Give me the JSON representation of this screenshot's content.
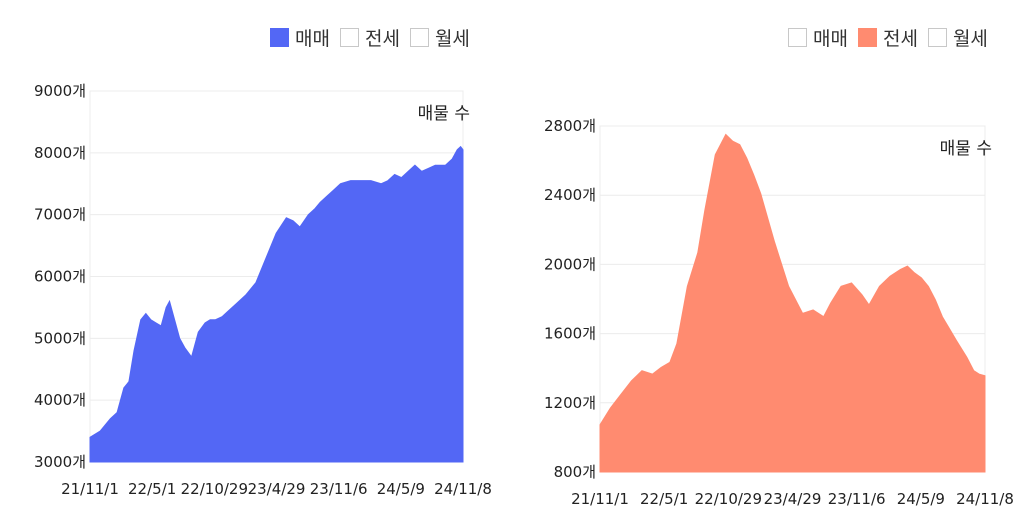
{
  "legend_labels": [
    "매매",
    "전세",
    "월세"
  ],
  "chart_note": "매물 수",
  "colors": {
    "sale": "#5367f5",
    "jeonse": "#ff8b70",
    "inactive_border": "#c8c8c8",
    "grid": "#ececec"
  },
  "chart_data": [
    {
      "type": "area",
      "active_series": "매매",
      "note": "매물 수",
      "legend": [
        "매매",
        "전세",
        "월세"
      ],
      "x_ticks": [
        "21/11/1",
        "22/5/1",
        "22/10/29",
        "23/4/29",
        "23/11/6",
        "24/5/9",
        "24/11/8"
      ],
      "y_ticks": [
        "3000개",
        "4000개",
        "5000개",
        "6000개",
        "7000개",
        "8000개",
        "9000개"
      ],
      "ylim": [
        3000,
        9000
      ],
      "xlim": [
        0,
        1102
      ],
      "grid": true,
      "legend_position": "top-right",
      "series": [
        {
          "name": "매매",
          "x": [
            0,
            30,
            60,
            80,
            100,
            115,
            130,
            150,
            165,
            180,
            195,
            210,
            225,
            235,
            250,
            265,
            280,
            300,
            320,
            340,
            355,
            370,
            390,
            410,
            430,
            460,
            490,
            520,
            550,
            580,
            600,
            620,
            645,
            665,
            680,
            700,
            720,
            740,
            770,
            800,
            830,
            860,
            880,
            900,
            920,
            940,
            960,
            980,
            1000,
            1020,
            1050,
            1070,
            1085,
            1095,
            1102
          ],
          "values": [
            3400,
            3500,
            3700,
            3800,
            4200,
            4300,
            4800,
            5300,
            5400,
            5300,
            5250,
            5200,
            5500,
            5600,
            5300,
            5000,
            4850,
            4700,
            5100,
            5250,
            5300,
            5300,
            5350,
            5450,
            5550,
            5700,
            5900,
            6300,
            6700,
            6950,
            6900,
            6800,
            7000,
            7100,
            7200,
            7300,
            7400,
            7500,
            7550,
            7550,
            7550,
            7500,
            7550,
            7650,
            7600,
            7700,
            7800,
            7700,
            7750,
            7800,
            7800,
            7900,
            8050,
            8100,
            8050
          ]
        }
      ]
    },
    {
      "type": "area",
      "active_series": "전세",
      "note": "매물 수",
      "legend": [
        "매매",
        "전세",
        "월세"
      ],
      "x_ticks": [
        "21/11/1",
        "22/5/1",
        "22/10/29",
        "23/4/29",
        "23/11/6",
        "24/5/9",
        "24/11/8"
      ],
      "y_ticks": [
        "800개",
        "1200개",
        "1600개",
        "2000개",
        "2400개",
        "2800개"
      ],
      "ylim": [
        800,
        2850
      ],
      "xlim": [
        0,
        1102
      ],
      "grid": true,
      "legend_position": "top-right",
      "series": [
        {
          "name": "전세",
          "x": [
            0,
            30,
            60,
            90,
            120,
            150,
            175,
            200,
            220,
            250,
            280,
            300,
            330,
            360,
            380,
            400,
            420,
            440,
            460,
            500,
            540,
            580,
            610,
            640,
            660,
            690,
            720,
            750,
            770,
            800,
            830,
            860,
            880,
            900,
            920,
            940,
            960,
            980,
            1000,
            1020,
            1050,
            1070,
            1085,
            1102
          ],
          "values": [
            1080,
            1180,
            1260,
            1340,
            1400,
            1380,
            1420,
            1450,
            1560,
            1900,
            2100,
            2350,
            2680,
            2800,
            2760,
            2740,
            2660,
            2560,
            2450,
            2160,
            1900,
            1740,
            1760,
            1720,
            1800,
            1900,
            1920,
            1850,
            1790,
            1900,
            1960,
            2000,
            2020,
            1980,
            1950,
            1900,
            1820,
            1720,
            1650,
            1580,
            1480,
            1400,
            1380,
            1370
          ]
        }
      ]
    }
  ]
}
